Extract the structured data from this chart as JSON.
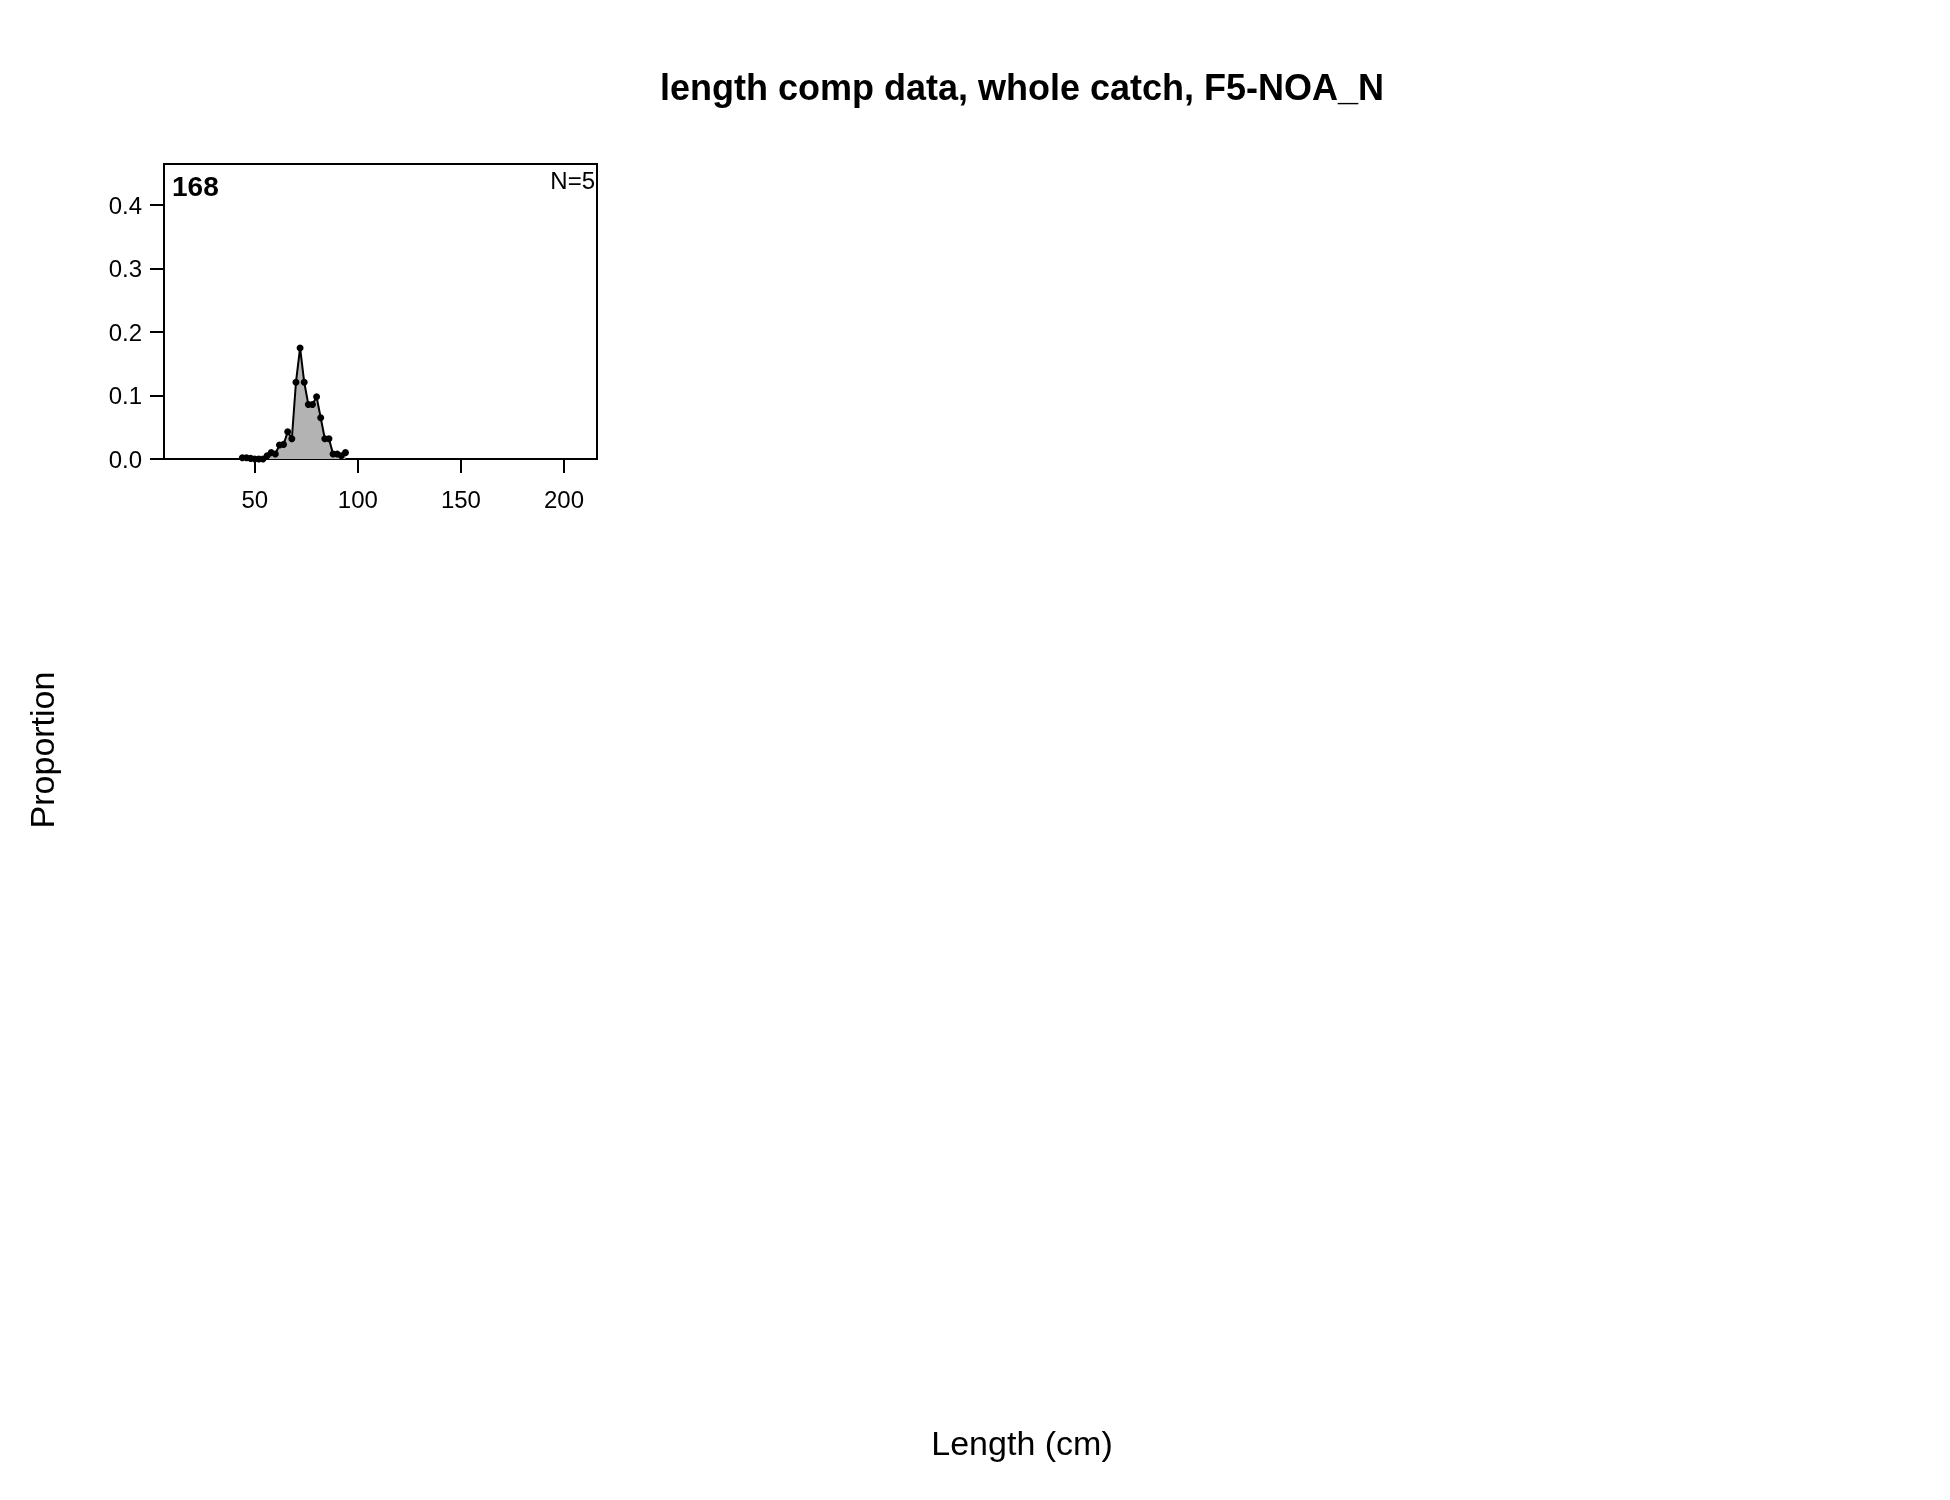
{
  "chart_data": {
    "type": "area",
    "title": "length comp data, whole catch, F5-NOA_N",
    "annotations": [
      "168",
      "N=5",
      "Proportion",
      "Length (cm)"
    ],
    "x": [
      44,
      46,
      48,
      50,
      52,
      54,
      56,
      58,
      60,
      62,
      64,
      66,
      68,
      70,
      72,
      74,
      76,
      78,
      80,
      82,
      84,
      86,
      88,
      90,
      92,
      94
    ],
    "series": [
      {
        "color": "#b3b3b3",
        "values": [
          0.002,
          0.002,
          0.001,
          0,
          0,
          0,
          0.005,
          0.01,
          0.008,
          0.022,
          0.023,
          0.043,
          0.032,
          0.121,
          0.175,
          0.121,
          0.086,
          0.086,
          0.098,
          0.065,
          0.032,
          0.032,
          0.008,
          0.008,
          0.005,
          0.01
        ]
      }
    ],
    "xlim": [
      6,
      216
    ],
    "xticks": [
      50,
      100,
      150,
      200
    ],
    "ylim": [
      0,
      0.465
    ],
    "yticks": [
      {
        "value": 0,
        "label": "0.0"
      },
      0.1,
      0.2,
      0.3,
      0.4
    ],
    "grid": false,
    "marker": "circle",
    "line_style": "solid"
  }
}
